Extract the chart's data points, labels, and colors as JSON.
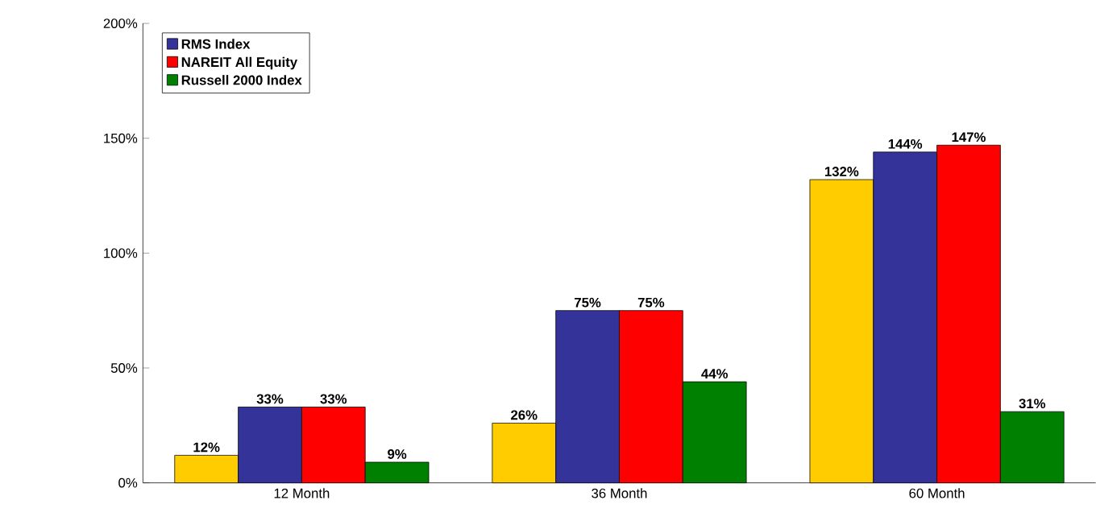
{
  "chart_data": {
    "type": "bar",
    "categories": [
      "12 Month",
      "36 Month",
      "60 Month"
    ],
    "series": [
      {
        "color": "#ffcc00",
        "values": [
          12,
          26,
          132
        ],
        "value_labels": [
          "12%",
          "26%",
          "132%"
        ]
      },
      {
        "name": "RMS Index",
        "color": "#333399",
        "values": [
          33,
          75,
          144
        ],
        "value_labels": [
          "33%",
          "75%",
          "144%"
        ]
      },
      {
        "name": "NAREIT All Equity",
        "color": "#ff0000",
        "values": [
          33,
          75,
          147
        ],
        "value_labels": [
          "33%",
          "75%",
          "147%"
        ]
      },
      {
        "name": "Russell 2000 Index",
        "color": "#008000",
        "values": [
          9,
          44,
          31
        ],
        "value_labels": [
          "9%",
          "44%",
          "31%"
        ]
      }
    ],
    "ylim": [
      0,
      200
    ],
    "yticks": [
      {
        "value": 0,
        "label": "0%"
      },
      {
        "value": 50,
        "label": "50%"
      },
      {
        "value": 100,
        "label": "100%"
      },
      {
        "value": 150,
        "label": "150%"
      },
      {
        "value": 200,
        "label": "200%"
      }
    ],
    "legend": "top left"
  }
}
